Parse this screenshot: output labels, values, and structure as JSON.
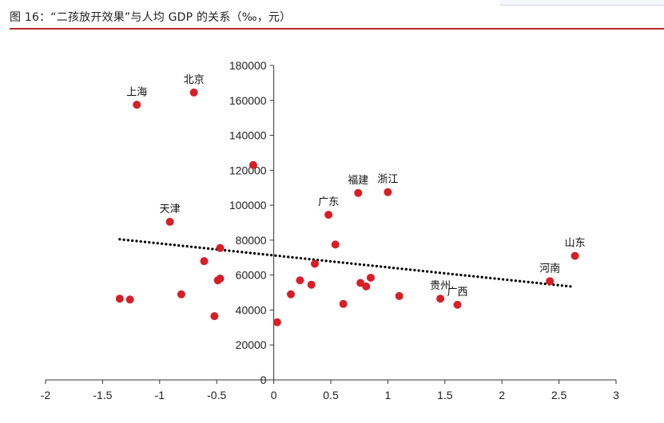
{
  "figure": {
    "title": "图 16：“二孩放开效果”与人均 GDP 的关系（‰，元）"
  },
  "colors": {
    "point": "#d81e26",
    "rule": "#b8292f",
    "trend": "#000000"
  },
  "chart_data": {
    "type": "scatter",
    "title": "图 16：“二孩放开效果”与人均 GDP 的关系（‰，元）",
    "xlabel": "",
    "ylabel": "",
    "xlim": [
      -2,
      3
    ],
    "ylim": [
      0,
      180000
    ],
    "xticks": [
      -2,
      -1.5,
      -1,
      -0.5,
      0,
      0.5,
      1,
      1.5,
      2,
      2.5,
      3
    ],
    "xtick_labels": [
      "-2",
      "-1.5",
      "-1",
      "-0.5",
      "0",
      "0.5",
      "1",
      "1.5",
      "2",
      "2.5",
      "3"
    ],
    "yticks": [
      0,
      20000,
      40000,
      60000,
      80000,
      100000,
      120000,
      140000,
      160000,
      180000
    ],
    "ytick_labels": [
      "0",
      "20000",
      "40000",
      "60000",
      "80000",
      "100000",
      "120000",
      "140000",
      "160000",
      "180000"
    ],
    "grid": false,
    "trendline": {
      "style": "dotted",
      "x": [
        -1.35,
        2.6
      ],
      "y": [
        80500,
        53500
      ]
    },
    "points": [
      {
        "x": -1.2,
        "y": 157500,
        "label": "上海",
        "label_pos": "above"
      },
      {
        "x": -0.7,
        "y": 164500,
        "label": "北京",
        "label_pos": "above"
      },
      {
        "x": -0.18,
        "y": 123000,
        "label": ""
      },
      {
        "x": -0.91,
        "y": 90500,
        "label": "天津",
        "label_pos": "above"
      },
      {
        "x": -0.47,
        "y": 75500,
        "label": ""
      },
      {
        "x": -0.61,
        "y": 68000,
        "label": ""
      },
      {
        "x": -0.49,
        "y": 57000,
        "label": ""
      },
      {
        "x": -0.47,
        "y": 58000,
        "label": ""
      },
      {
        "x": -0.81,
        "y": 49000,
        "label": ""
      },
      {
        "x": -1.35,
        "y": 46500,
        "label": ""
      },
      {
        "x": -1.26,
        "y": 46000,
        "label": ""
      },
      {
        "x": -0.52,
        "y": 36500,
        "label": ""
      },
      {
        "x": 0.03,
        "y": 33000,
        "label": ""
      },
      {
        "x": 0.15,
        "y": 49000,
        "label": ""
      },
      {
        "x": 0.23,
        "y": 57000,
        "label": ""
      },
      {
        "x": 0.33,
        "y": 54500,
        "label": ""
      },
      {
        "x": 0.36,
        "y": 66500,
        "label": ""
      },
      {
        "x": 0.48,
        "y": 94500,
        "label": "广东",
        "label_pos": "above"
      },
      {
        "x": 0.54,
        "y": 77500,
        "label": ""
      },
      {
        "x": 0.61,
        "y": 43500,
        "label": ""
      },
      {
        "x": 0.74,
        "y": 107000,
        "label": "福建",
        "label_pos": "above"
      },
      {
        "x": 0.76,
        "y": 55500,
        "label": ""
      },
      {
        "x": 0.81,
        "y": 53500,
        "label": ""
      },
      {
        "x": 0.85,
        "y": 58500,
        "label": ""
      },
      {
        "x": 1.0,
        "y": 107500,
        "label": "浙江",
        "label_pos": "above"
      },
      {
        "x": 1.1,
        "y": 48000,
        "label": ""
      },
      {
        "x": 1.46,
        "y": 46500,
        "label": "贵州",
        "label_pos": "above"
      },
      {
        "x": 1.61,
        "y": 43000,
        "label": "广西",
        "label_pos": "above"
      },
      {
        "x": 2.42,
        "y": 56500,
        "label": "河南",
        "label_pos": "above"
      },
      {
        "x": 2.64,
        "y": 71000,
        "label": "山东",
        "label_pos": "above"
      }
    ]
  }
}
